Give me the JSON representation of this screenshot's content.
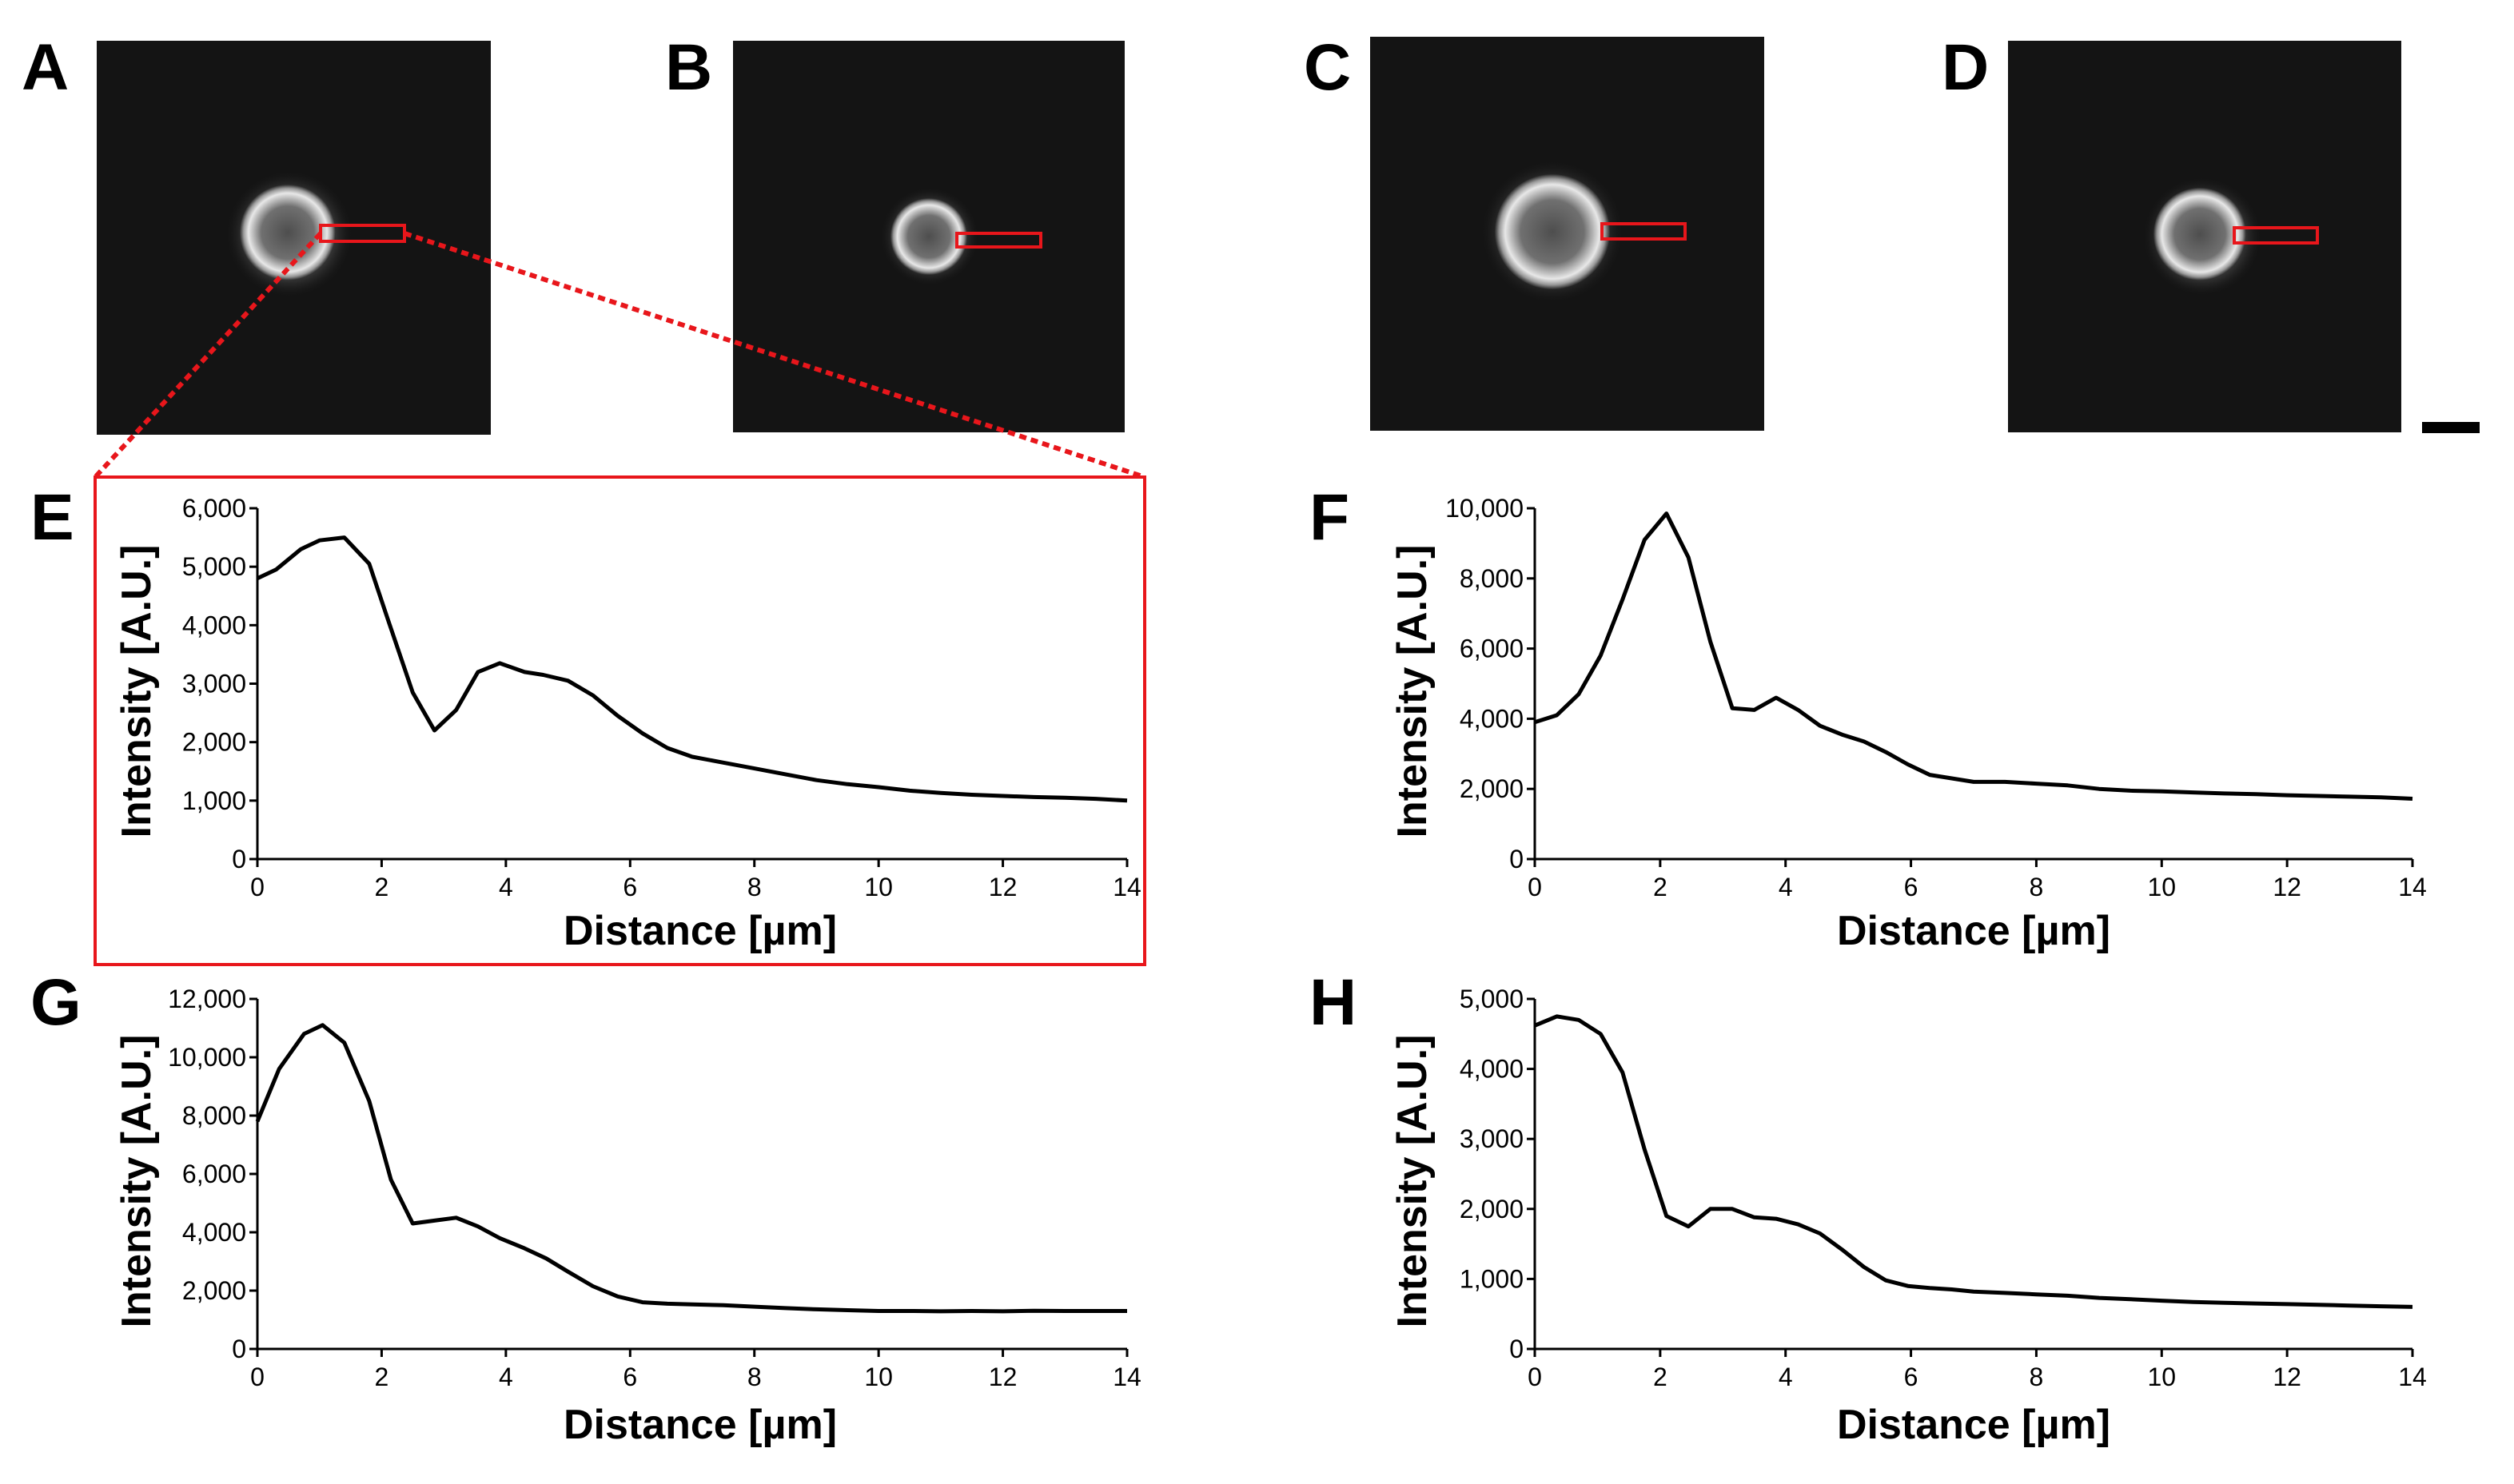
{
  "colors": {
    "background": "#ffffff",
    "line": "#000000",
    "highlight": "#e8161b",
    "micrograph_bg": "#141414"
  },
  "image_panels": [
    {
      "label": "A",
      "cell": "cell"
    },
    {
      "label": "B",
      "cell": "cell"
    },
    {
      "label": "C",
      "cell": "cell"
    },
    {
      "label": "D",
      "cell": "cell"
    }
  ],
  "scale_bar": {
    "name": "scale-bar"
  },
  "chart_data": [
    {
      "panel": "E",
      "type": "line",
      "xlabel": "Distance [µm]",
      "ylabel": "Intensity [A.U.]",
      "xlim": [
        0,
        14
      ],
      "ylim": [
        0,
        6000
      ],
      "xticks": [
        0,
        2,
        4,
        6,
        8,
        10,
        12,
        14
      ],
      "yticks": [
        0,
        1000,
        2000,
        3000,
        4000,
        5000,
        6000
      ],
      "ytick_labels": [
        "0",
        "1,000",
        "2,000",
        "3,000",
        "4,000",
        "5,000",
        "6,000"
      ],
      "x": [
        0,
        0.3,
        0.7,
        1.0,
        1.4,
        1.8,
        2.1,
        2.5,
        2.85,
        3.2,
        3.55,
        3.9,
        4.3,
        4.6,
        5.0,
        5.4,
        5.8,
        6.2,
        6.6,
        7.0,
        7.5,
        8.0,
        8.5,
        9.0,
        9.5,
        10.0,
        10.5,
        11.0,
        11.5,
        12.0,
        12.5,
        13.0,
        13.5,
        14.0
      ],
      "y": [
        4800,
        4950,
        5300,
        5450,
        5500,
        5050,
        4100,
        2850,
        2200,
        2550,
        3200,
        3350,
        3200,
        3150,
        3050,
        2800,
        2450,
        2150,
        1900,
        1750,
        1650,
        1550,
        1450,
        1350,
        1280,
        1230,
        1170,
        1130,
        1100,
        1080,
        1060,
        1050,
        1030,
        1000
      ]
    },
    {
      "panel": "F",
      "type": "line",
      "xlabel": "Distance [µm]",
      "ylabel": "Intensity [A.U.]",
      "xlim": [
        0,
        14
      ],
      "ylim": [
        0,
        10000
      ],
      "xticks": [
        0,
        2,
        4,
        6,
        8,
        10,
        12,
        14
      ],
      "yticks": [
        0,
        2000,
        4000,
        6000,
        8000,
        10000
      ],
      "ytick_labels": [
        "0",
        "2,000",
        "4,000",
        "6,000",
        "8,000",
        "10,000"
      ],
      "x": [
        0,
        0.35,
        0.7,
        1.05,
        1.4,
        1.75,
        2.1,
        2.45,
        2.8,
        3.15,
        3.5,
        3.85,
        4.2,
        4.55,
        4.9,
        5.25,
        5.6,
        5.95,
        6.3,
        6.65,
        7.0,
        7.5,
        8.0,
        8.5,
        9.0,
        9.5,
        10.0,
        10.5,
        11.0,
        11.5,
        12.0,
        12.5,
        13.0,
        13.5,
        14.0
      ],
      "y": [
        3900,
        4100,
        4700,
        5800,
        7400,
        9100,
        9850,
        8600,
        6200,
        4300,
        4250,
        4600,
        4250,
        3800,
        3550,
        3350,
        3050,
        2700,
        2400,
        2300,
        2200,
        2200,
        2150,
        2100,
        2000,
        1950,
        1930,
        1900,
        1870,
        1850,
        1820,
        1800,
        1780,
        1760,
        1720
      ]
    },
    {
      "panel": "G",
      "type": "line",
      "xlabel": "Distance [µm]",
      "ylabel": "Intensity [A.U.]",
      "xlim": [
        0,
        14
      ],
      "ylim": [
        0,
        12000
      ],
      "xticks": [
        0,
        2,
        4,
        6,
        8,
        10,
        12,
        14
      ],
      "yticks": [
        0,
        2000,
        4000,
        6000,
        8000,
        10000,
        12000
      ],
      "ytick_labels": [
        "0",
        "2,000",
        "4,000",
        "6,000",
        "8,000",
        "10,000",
        "12,000"
      ],
      "x": [
        0,
        0.35,
        0.75,
        1.05,
        1.4,
        1.8,
        2.15,
        2.5,
        2.85,
        3.2,
        3.55,
        3.9,
        4.3,
        4.65,
        5.0,
        5.4,
        5.8,
        6.2,
        6.6,
        7.0,
        7.5,
        8.0,
        8.5,
        9.0,
        9.5,
        10.0,
        10.5,
        11.0,
        11.5,
        12.0,
        12.5,
        13.0,
        13.5,
        14.0
      ],
      "y": [
        7800,
        9600,
        10800,
        11100,
        10500,
        8500,
        5800,
        4300,
        4400,
        4500,
        4200,
        3800,
        3450,
        3100,
        2650,
        2150,
        1800,
        1600,
        1550,
        1530,
        1500,
        1450,
        1400,
        1360,
        1330,
        1300,
        1300,
        1290,
        1300,
        1290,
        1310,
        1300,
        1300,
        1300
      ]
    },
    {
      "panel": "H",
      "type": "line",
      "xlabel": "Distance [µm]",
      "ylabel": "Intensity [A.U.]",
      "xlim": [
        0,
        14
      ],
      "ylim": [
        0,
        5000
      ],
      "xticks": [
        0,
        2,
        4,
        6,
        8,
        10,
        12,
        14
      ],
      "yticks": [
        0,
        1000,
        2000,
        3000,
        4000,
        5000
      ],
      "ytick_labels": [
        "0",
        "1,000",
        "2,000",
        "3,000",
        "4,000",
        "5,000"
      ],
      "x": [
        0,
        0.35,
        0.7,
        1.05,
        1.4,
        1.75,
        2.1,
        2.45,
        2.8,
        3.15,
        3.5,
        3.85,
        4.2,
        4.55,
        4.9,
        5.25,
        5.6,
        5.95,
        6.3,
        6.65,
        7.0,
        7.5,
        8.0,
        8.5,
        9.0,
        9.5,
        10.0,
        10.5,
        11.0,
        11.5,
        12.0,
        12.5,
        13.0,
        13.5,
        14.0
      ],
      "y": [
        4620,
        4750,
        4700,
        4500,
        3950,
        2850,
        1900,
        1750,
        2000,
        2000,
        1880,
        1860,
        1780,
        1650,
        1420,
        1170,
        980,
        900,
        870,
        850,
        820,
        800,
        780,
        760,
        730,
        710,
        690,
        670,
        660,
        650,
        640,
        630,
        620,
        610,
        600
      ]
    }
  ]
}
